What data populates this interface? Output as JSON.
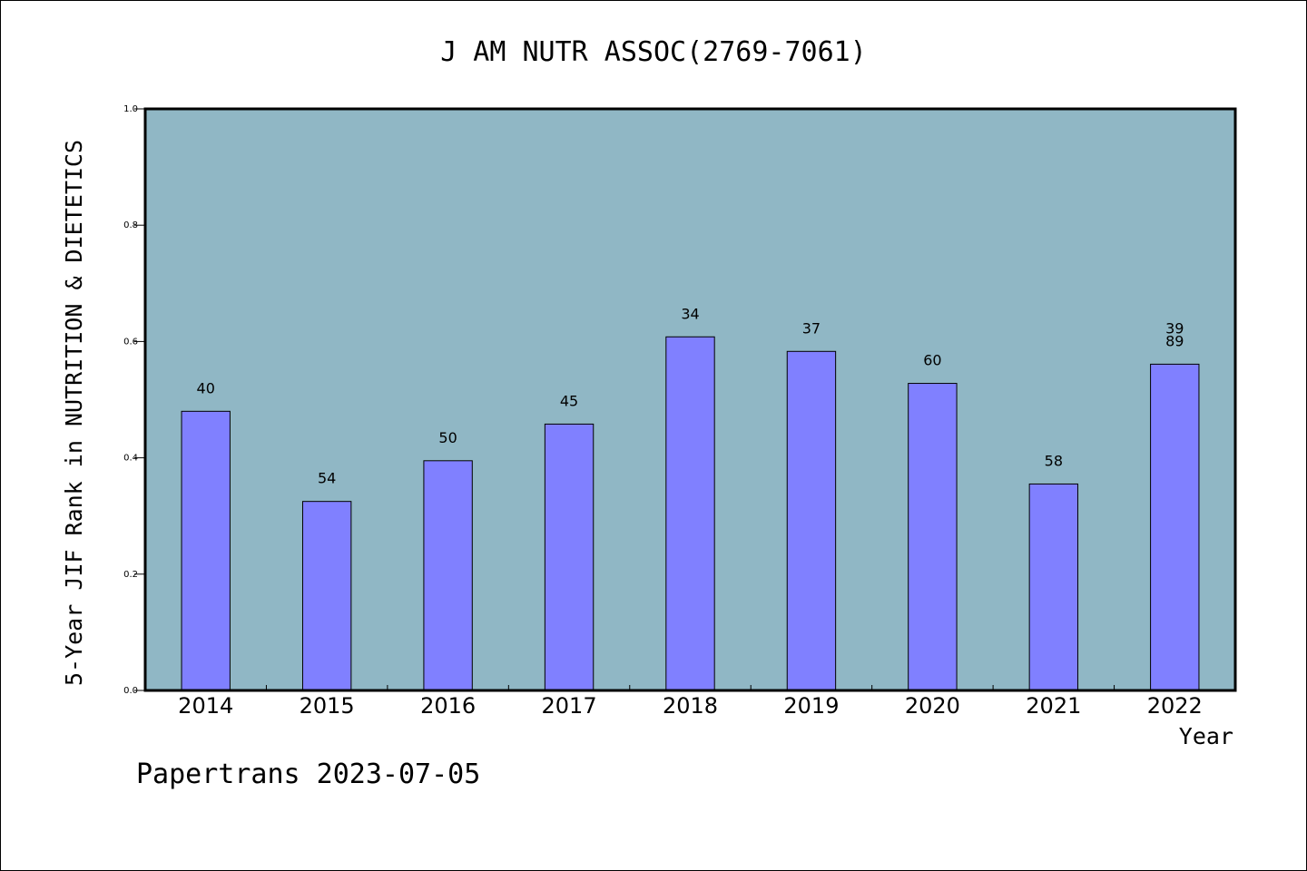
{
  "chart_data": {
    "type": "bar",
    "title": "J AM NUTR ASSOC(2769-7061)",
    "xlabel": "Year",
    "ylabel": "5-Year JIF Rank in NUTRITION & DIETETICS",
    "ylim": [
      0,
      1.0
    ],
    "yticks": [
      "0.0",
      "0.2",
      "0.4",
      "0.6",
      "0.8",
      "1.0"
    ],
    "grid": false,
    "categories": [
      "2014",
      "2015",
      "2016",
      "2017",
      "2018",
      "2019",
      "2020",
      "2021",
      "2022"
    ],
    "values": [
      0.48,
      0.325,
      0.395,
      0.458,
      0.608,
      0.583,
      0.528,
      0.355,
      0.561
    ],
    "data_labels": [
      [
        "40"
      ],
      [
        "54"
      ],
      [
        "50"
      ],
      [
        "45"
      ],
      [
        "34"
      ],
      [
        "37"
      ],
      [
        "60"
      ],
      [
        "58"
      ],
      [
        "39",
        "89"
      ]
    ],
    "colors": {
      "bar": "#8080ff",
      "plot_background": "#90b7c5",
      "frame": "#000000"
    }
  },
  "footer": {
    "source_text": "Papertrans 2023-07-05"
  }
}
